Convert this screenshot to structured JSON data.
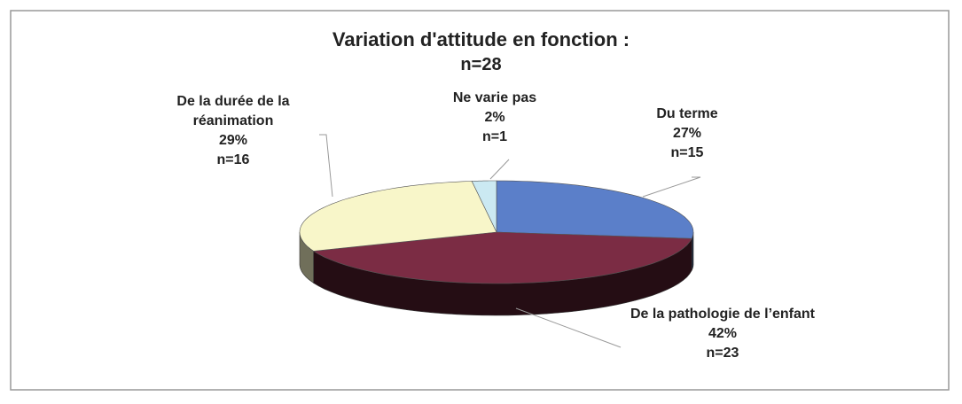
{
  "chart_data": {
    "type": "pie3d",
    "title": "Variation d'attitude en fonction :",
    "subtitle": "n=28",
    "categories": [
      "Du terme",
      "De la pathologie de l’enfant",
      "De la durée de la réanimation",
      "Ne varie pas"
    ],
    "values": [
      27,
      42,
      29,
      2
    ],
    "value_labels": [
      "27%",
      "42%",
      "29%",
      "2%"
    ],
    "count_labels": [
      "n=15",
      "n=23",
      "n=16",
      "n=1"
    ],
    "colors": [
      "#5b7fc9",
      "#7b2c44",
      "#f8f6c9",
      "#cbe9f2"
    ]
  }
}
